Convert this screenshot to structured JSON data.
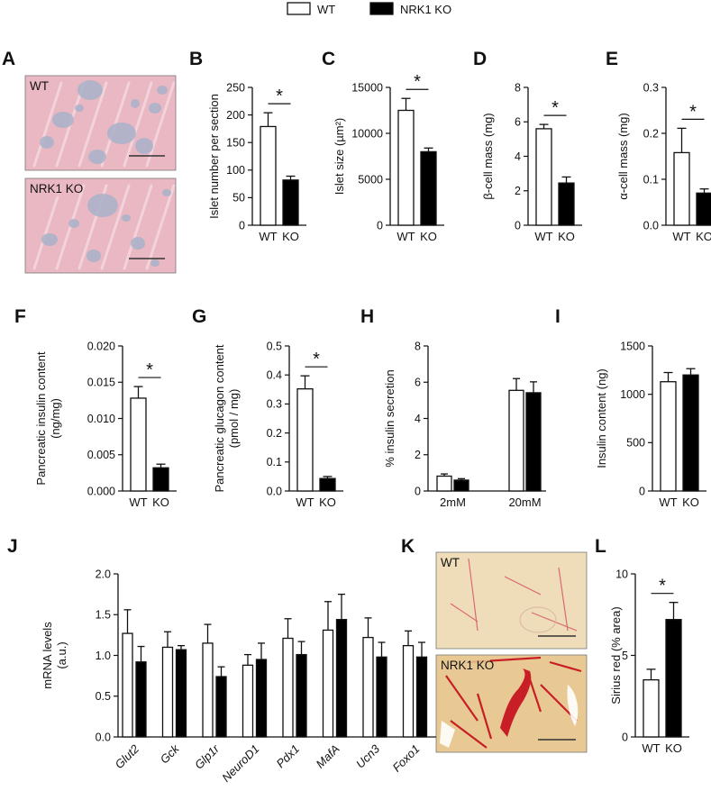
{
  "legend": [
    {
      "label": "WT",
      "color": "#ffffff"
    },
    {
      "label": "NRK1 KO",
      "color": "#000000"
    }
  ],
  "panels": {
    "A": {
      "letter": "A",
      "images": [
        {
          "label": "WT",
          "background": "#e9b8c3",
          "stain": "H&E islet morphology",
          "islet_color": "#a8b1c9"
        },
        {
          "label": "NRK1 KO",
          "background": "#e9b8c3",
          "stain": "H&E islet morphology",
          "islet_color": "#a8b1c9"
        }
      ]
    },
    "K": {
      "letter": "K",
      "images": [
        {
          "label": "WT",
          "background": "#efdcb8",
          "stain": "Sirius red",
          "fibrosis_color": "#c81e26"
        },
        {
          "label": "NRK1 KO",
          "background": "#e8c993",
          "stain": "Sirius red",
          "fibrosis_color": "#c81e26"
        }
      ]
    }
  },
  "chart_data": [
    {
      "id": "B",
      "type": "bar",
      "categories": [
        "WT",
        "KO"
      ],
      "values": [
        179,
        82
      ],
      "errors": [
        25,
        7
      ],
      "ylabel": "Islet number per section",
      "ylim": [
        0,
        250
      ],
      "yticks": [
        0,
        50,
        100,
        150,
        200,
        250
      ],
      "significance": "*"
    },
    {
      "id": "C",
      "type": "bar",
      "categories": [
        "WT",
        "KO"
      ],
      "values": [
        12500,
        8000
      ],
      "errors": [
        1300,
        400
      ],
      "ylabel": "Islet size (µm²)",
      "ylim": [
        0,
        15000
      ],
      "yticks": [
        0,
        5000,
        10000,
        15000
      ],
      "significance": "*"
    },
    {
      "id": "D",
      "type": "bar",
      "categories": [
        "WT",
        "KO"
      ],
      "values": [
        5.6,
        2.45
      ],
      "errors": [
        0.25,
        0.35
      ],
      "ylabel": "β-cell mass (mg)",
      "ylim": [
        0,
        8
      ],
      "yticks": [
        0,
        2,
        4,
        6,
        8
      ],
      "significance": "*"
    },
    {
      "id": "E",
      "type": "bar",
      "categories": [
        "WT",
        "KO"
      ],
      "values": [
        0.158,
        0.07
      ],
      "errors": [
        0.053,
        0.009
      ],
      "ylabel": "α-cell mass (mg)",
      "ylim": [
        0,
        0.3
      ],
      "yticks": [
        "0.0",
        "0.1",
        "0.2",
        "0.3"
      ],
      "significance": "*"
    },
    {
      "id": "F",
      "type": "bar",
      "categories": [
        "WT",
        "KO"
      ],
      "values": [
        0.0128,
        0.0032
      ],
      "errors": [
        0.0016,
        0.0005
      ],
      "ylabel": "Pancreatic insulin content (ng/mg)",
      "ylim": [
        0,
        0.02
      ],
      "yticks": [
        "0.000",
        "0.005",
        "0.010",
        "0.015",
        "0.020"
      ],
      "significance": "*"
    },
    {
      "id": "G",
      "type": "bar",
      "categories": [
        "WT",
        "KO"
      ],
      "values": [
        0.352,
        0.043
      ],
      "errors": [
        0.045,
        0.007
      ],
      "ylabel": "Pancreatic glucagon content (pmol / mg)",
      "ylim": [
        0,
        0.5
      ],
      "yticks": [
        "0.0",
        "0.1",
        "0.2",
        "0.3",
        "0.4",
        "0.5"
      ],
      "significance": "*"
    },
    {
      "id": "H",
      "type": "bar",
      "categories": [
        "2mM",
        "20mM"
      ],
      "series": [
        {
          "name": "WT",
          "values": [
            0.82,
            5.55
          ],
          "errors": [
            0.12,
            0.65
          ]
        },
        {
          "name": "NRK1 KO",
          "values": [
            0.6,
            5.42
          ],
          "errors": [
            0.08,
            0.6
          ]
        }
      ],
      "ylabel": "% insulin secretion",
      "ylim": [
        0,
        8
      ],
      "yticks": [
        0,
        2,
        4,
        6,
        8
      ]
    },
    {
      "id": "I",
      "type": "bar",
      "categories": [
        "WT",
        "KO"
      ],
      "values": [
        1130,
        1200
      ],
      "errors": [
        95,
        65
      ],
      "ylabel": "Insulin content (ng)",
      "ylim": [
        0,
        1500
      ],
      "yticks": [
        0,
        500,
        1000,
        1500
      ]
    },
    {
      "id": "J",
      "type": "bar",
      "categories": [
        "Glut2",
        "Gck",
        "Glp1r",
        "NeuroD1",
        "Pdx1",
        "MafA",
        "Ucn3",
        "Foxo1"
      ],
      "series": [
        {
          "name": "WT",
          "values": [
            1.27,
            1.1,
            1.15,
            0.88,
            1.21,
            1.31,
            1.22,
            1.12
          ],
          "errors": [
            0.29,
            0.19,
            0.23,
            0.13,
            0.24,
            0.35,
            0.24,
            0.18
          ]
        },
        {
          "name": "NRK1 KO",
          "values": [
            0.92,
            1.07,
            0.74,
            0.95,
            1.01,
            1.44,
            0.98,
            0.98
          ],
          "errors": [
            0.19,
            0.05,
            0.12,
            0.2,
            0.16,
            0.31,
            0.18,
            0.18
          ]
        }
      ],
      "ylabel": "mRNA levels (a.u.)",
      "ylim": [
        0,
        2
      ],
      "yticks": [
        "0.0",
        "0.5",
        "1.0",
        "1.5",
        "2.0"
      ]
    },
    {
      "id": "L",
      "type": "bar",
      "categories": [
        "WT",
        "KO"
      ],
      "values": [
        3.5,
        7.2
      ],
      "errors": [
        0.65,
        1.05
      ],
      "ylabel": "Sirius red (% area)",
      "ylim": [
        0,
        10
      ],
      "yticks": [
        0,
        5,
        10
      ],
      "significance": "*"
    }
  ]
}
